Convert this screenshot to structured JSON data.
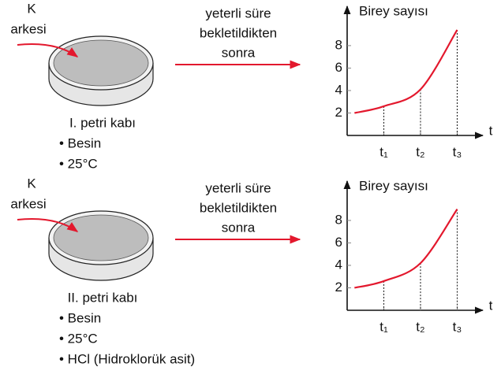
{
  "panels": [
    {
      "organism": [
        "K",
        "arkesi"
      ],
      "dish": "I. petri kabı",
      "conditions": [
        "• Besin",
        "• 25°C"
      ],
      "arrow_text": [
        "yeterli süre",
        "bekletildikten",
        "sonra"
      ],
      "chart_data": {
        "type": "line",
        "y_label": "Birey sayısı",
        "x_label": "t",
        "ylim": [
          0,
          11.5
        ],
        "yticks": [
          2,
          4,
          6,
          8
        ],
        "xlim": [
          0,
          3.7
        ],
        "xticks": [
          {
            "value": 1,
            "label": "t₁"
          },
          {
            "value": 2,
            "label": "t₂"
          },
          {
            "value": 3,
            "label": "t₃"
          }
        ],
        "series": [
          {
            "color": "#e3182d",
            "x": [
              0.2,
              1,
              2,
              3
            ],
            "values": [
              2,
              2.6,
              4.1,
              9.4
            ]
          }
        ]
      }
    },
    {
      "organism": [
        "K",
        "arkesi"
      ],
      "dish": "II. petri kabı",
      "conditions": [
        "• Besin",
        "• 25°C",
        "• HCl (Hidroklorük asit)"
      ],
      "arrow_text": [
        "yeterli süre",
        "bekletildikten",
        "sonra"
      ],
      "chart_data": {
        "type": "line",
        "y_label": "Birey sayısı",
        "x_label": "t",
        "ylim": [
          0,
          11.5
        ],
        "yticks": [
          2,
          4,
          6,
          8
        ],
        "xlim": [
          0,
          3.7
        ],
        "xticks": [
          {
            "value": 1,
            "label": "t₁"
          },
          {
            "value": 2,
            "label": "t₂"
          },
          {
            "value": 3,
            "label": "t₃"
          }
        ],
        "series": [
          {
            "color": "#e3182d",
            "x": [
              0.2,
              1,
              2,
              3
            ],
            "values": [
              2,
              2.6,
              4.2,
              9.0
            ]
          }
        ]
      }
    }
  ]
}
